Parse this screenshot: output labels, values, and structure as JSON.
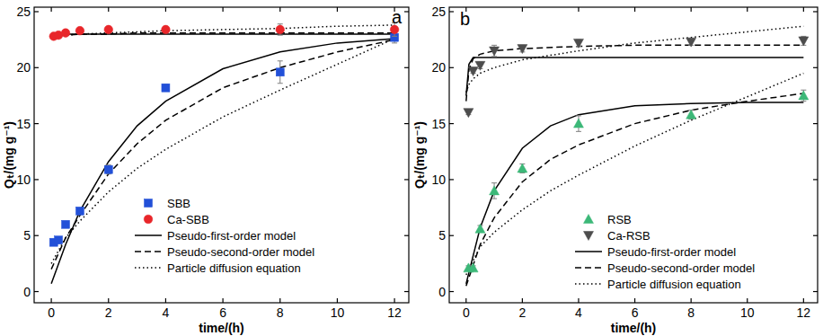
{
  "chart_data": [
    {
      "type": "scatter",
      "title": "a",
      "x_label": "time/(h)",
      "y_label": "Qₜ/(mg g⁻¹)",
      "xlim": [
        -0.6,
        12.5
      ],
      "xticks": [
        0,
        2,
        4,
        6,
        8,
        10,
        12
      ],
      "ylim": [
        -1,
        25.4
      ],
      "yticks": [
        0,
        5,
        10,
        15,
        20,
        25
      ],
      "legend": "lower-right",
      "series": [
        {
          "name": "SBB",
          "color": "#2250d8",
          "marker": "square",
          "x": [
            0.083,
            0.25,
            0.5,
            1,
            2,
            4,
            8,
            12
          ],
          "values": [
            4.4,
            4.6,
            6.0,
            7.2,
            10.9,
            18.2,
            19.6,
            22.7
          ],
          "errors": [
            0.2,
            0.2,
            0.2,
            0.2,
            0.4,
            0.3,
            1.0,
            0.5
          ]
        },
        {
          "name": "Ca-SBB",
          "color": "#e8262a",
          "marker": "circle",
          "x": [
            0.083,
            0.25,
            0.5,
            1,
            2,
            4,
            8,
            12
          ],
          "values": [
            22.8,
            22.9,
            23.1,
            23.3,
            23.4,
            23.4,
            23.4,
            23.4
          ],
          "errors": [
            0.1,
            0.1,
            0.1,
            0.1,
            0.2,
            0.2,
            0.5,
            0.6
          ]
        }
      ],
      "models": [
        {
          "name": "Pseudo-first-order model",
          "color": "#000000",
          "line_style": "solid",
          "curves": [
            {
              "x": [
                0,
                0.5,
                1,
                2,
                3,
                4,
                6,
                8,
                10,
                12
              ],
              "values": [
                0.7,
                4.2,
                7.2,
                11.6,
                14.8,
                17.0,
                19.9,
                21.4,
                22.2,
                22.6
              ]
            },
            {
              "x": [
                0,
                0.5,
                1,
                2,
                3,
                4,
                6,
                8,
                10,
                12
              ],
              "values": [
                22.9,
                23.0,
                23.0,
                23.0,
                23.0,
                23.0,
                23.0,
                23.0,
                23.0,
                23.0
              ]
            }
          ]
        },
        {
          "name": "Pseudo-second-order model",
          "color": "#000000",
          "line_style": "dashed",
          "curves": [
            {
              "x": [
                0,
                0.5,
                1,
                2,
                3,
                4,
                6,
                8,
                10,
                12
              ],
              "values": [
                2.0,
                4.8,
                6.8,
                10.5,
                13.2,
                15.3,
                18.2,
                20.0,
                21.4,
                22.5
              ]
            },
            {
              "x": [
                0,
                0.5,
                1,
                2,
                3,
                4,
                6,
                8,
                10,
                12
              ],
              "values": [
                22.8,
                22.9,
                23.0,
                23.0,
                23.1,
                23.1,
                23.1,
                23.1,
                23.1,
                23.1
              ]
            }
          ]
        },
        {
          "name": "Particle diffusion equation",
          "color": "#000000",
          "line_style": "dotted",
          "curves": [
            {
              "x": [
                0,
                0.5,
                1,
                2,
                3,
                4,
                6,
                8,
                10,
                12
              ],
              "values": [
                2.5,
                4.8,
                6.3,
                8.9,
                11.0,
                12.7,
                15.6,
                18.0,
                20.3,
                22.6
              ]
            },
            {
              "x": [
                0,
                0.5,
                1,
                2,
                3,
                4,
                6,
                8,
                10,
                12
              ],
              "values": [
                22.8,
                22.9,
                23.0,
                23.1,
                23.2,
                23.3,
                23.4,
                23.5,
                23.7,
                23.8
              ]
            }
          ]
        }
      ]
    },
    {
      "type": "scatter",
      "title": "b",
      "x_label": "time/(h)",
      "y_label": "Qₜ/(mg g⁻¹)",
      "xlim": [
        -0.6,
        12.5
      ],
      "xticks": [
        0,
        2,
        4,
        6,
        8,
        10,
        12
      ],
      "ylim": [
        -1,
        25.4
      ],
      "yticks": [
        0,
        5,
        10,
        15,
        20,
        25
      ],
      "legend": "lower-right",
      "series": [
        {
          "name": "RSB",
          "color": "#3cb878",
          "marker": "triangle-up",
          "x": [
            0.083,
            0.25,
            0.5,
            1,
            2,
            4,
            8,
            12
          ],
          "values": [
            2.1,
            2.1,
            5.6,
            9.0,
            11.0,
            15.0,
            15.8,
            17.5
          ],
          "errors": [
            0.2,
            0.2,
            0.3,
            0.7,
            0.4,
            0.7,
            0.4,
            0.5
          ]
        },
        {
          "name": "Ca-RSB",
          "color": "#4d4d4d",
          "marker": "triangle-down",
          "x": [
            0.083,
            0.25,
            0.5,
            1,
            2,
            4,
            8,
            12
          ],
          "values": [
            16.0,
            19.7,
            20.2,
            21.5,
            21.7,
            22.2,
            22.3,
            22.4
          ],
          "errors": [
            0.2,
            0.2,
            0.3,
            0.5,
            0.3,
            0.3,
            0.3,
            0.4
          ]
        }
      ],
      "models": [
        {
          "name": "Pseudo-first-order model",
          "color": "#000000",
          "line_style": "solid",
          "curves": [
            {
              "x": [
                0,
                0.5,
                1,
                2,
                3,
                4,
                6,
                8,
                10,
                12
              ],
              "values": [
                0.7,
                5.7,
                9.0,
                12.8,
                14.8,
                15.8,
                16.6,
                16.8,
                16.9,
                16.9
              ]
            },
            {
              "x": [
                0,
                0.1,
                0.25,
                0.5,
                1,
                2,
                4,
                6,
                8,
                10,
                12
              ],
              "values": [
                17.5,
                20.3,
                20.9,
                20.9,
                20.9,
                20.9,
                20.9,
                20.9,
                20.9,
                20.9,
                20.9
              ]
            }
          ]
        },
        {
          "name": "Pseudo-second-order model",
          "color": "#000000",
          "line_style": "dashed",
          "curves": [
            {
              "x": [
                0,
                0.5,
                1,
                2,
                3,
                4,
                6,
                8,
                10,
                12
              ],
              "values": [
                0.5,
                4.2,
                6.6,
                9.8,
                11.8,
                13.1,
                15.0,
                16.2,
                17.0,
                17.7
              ]
            },
            {
              "x": [
                0,
                0.1,
                0.25,
                0.5,
                1,
                2,
                4,
                6,
                8,
                10,
                12
              ],
              "values": [
                17.0,
                19.8,
                20.8,
                21.2,
                21.5,
                21.7,
                21.9,
                22.0,
                22.0,
                22.0,
                22.0
              ]
            }
          ]
        },
        {
          "name": "Particle diffusion equation",
          "color": "#000000",
          "line_style": "dotted",
          "curves": [
            {
              "x": [
                0,
                0.5,
                1,
                2,
                3,
                4,
                6,
                8,
                10,
                12
              ],
              "values": [
                1.5,
                4.0,
                5.3,
                7.3,
                9.0,
                10.4,
                13.0,
                15.3,
                17.4,
                19.5
              ]
            },
            {
              "x": [
                0,
                0.1,
                0.25,
                0.5,
                1,
                2,
                4,
                6,
                8,
                10,
                12
              ],
              "values": [
                17.8,
                18.5,
                19.0,
                19.5,
                20.0,
                20.7,
                21.5,
                22.2,
                22.7,
                23.2,
                23.7
              ]
            }
          ]
        }
      ]
    }
  ]
}
